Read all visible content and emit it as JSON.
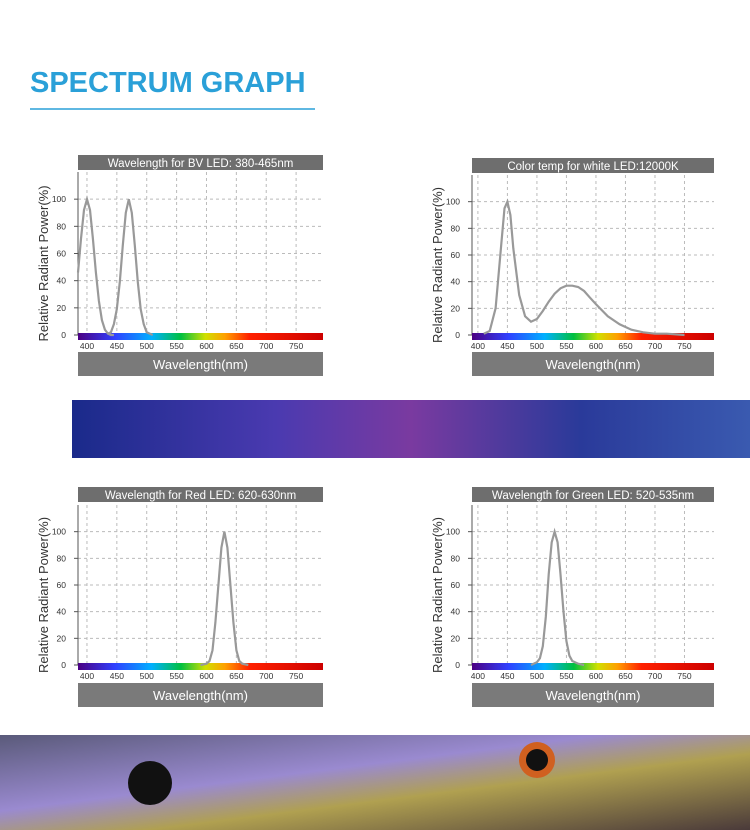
{
  "page_title": "SPECTRUM GRAPH",
  "chart_data": [
    {
      "type": "line",
      "title": "Wavelength for BV LED:  380-465nm",
      "xlabel": "Wavelength(nm)",
      "ylabel": "Relative Radiant Power(%)",
      "xlim": [
        385,
        795
      ],
      "ylim": [
        0,
        120
      ],
      "xticks": [
        400,
        450,
        500,
        550,
        600,
        650,
        700,
        750
      ],
      "yticks": [
        0,
        20,
        40,
        60,
        80,
        100
      ],
      "grid": true,
      "series": [
        {
          "color": "#999999",
          "x": [
            385,
            390,
            395,
            400,
            405,
            410,
            415,
            420,
            425,
            430,
            435,
            440,
            445
          ],
          "values": [
            46,
            71,
            92,
            100,
            92,
            71,
            46,
            25,
            11,
            4,
            1,
            0,
            0
          ]
        },
        {
          "color": "#999999",
          "x": [
            435,
            440,
            445,
            450,
            455,
            460,
            465,
            470,
            475,
            480,
            485,
            490,
            495,
            500,
            505,
            510
          ],
          "values": [
            1,
            2,
            8,
            19,
            39,
            66,
            90,
            100,
            90,
            66,
            39,
            19,
            8,
            2,
            1,
            0
          ]
        }
      ]
    },
    {
      "type": "line",
      "title": "Color temp for white LED:12000K",
      "xlabel": "Wavelength(nm)",
      "ylabel": "Relative Radiant Power(%)",
      "xlim": [
        390,
        800
      ],
      "ylim": [
        0,
        120
      ],
      "xticks": [
        400,
        450,
        500,
        550,
        600,
        650,
        700,
        750
      ],
      "yticks": [
        0,
        20,
        40,
        60,
        80,
        100
      ],
      "grid": true,
      "series": [
        {
          "color": "#999999",
          "x": [
            410,
            420,
            430,
            440,
            445,
            450,
            455,
            460,
            470,
            480,
            490,
            500,
            510,
            520,
            530,
            540,
            550,
            560,
            570,
            580,
            590,
            600,
            620,
            640,
            660,
            680,
            700,
            720,
            750
          ],
          "values": [
            1,
            3,
            20,
            70,
            95,
            100,
            90,
            65,
            30,
            14,
            10,
            12,
            18,
            25,
            31,
            35,
            37,
            37,
            36,
            33,
            28,
            23,
            14,
            8,
            4,
            2,
            1,
            1,
            0
          ]
        }
      ]
    },
    {
      "type": "line",
      "title": "Wavelength for Red LED:  620-630nm",
      "xlabel": "Wavelength(nm)",
      "ylabel": "Relative Radiant Power(%)",
      "xlim": [
        385,
        795
      ],
      "ylim": [
        0,
        120
      ],
      "xticks": [
        400,
        450,
        500,
        550,
        600,
        650,
        700,
        750
      ],
      "yticks": [
        0,
        20,
        40,
        60,
        80,
        100
      ],
      "grid": true,
      "series": [
        {
          "color": "#999999",
          "x": [
            590,
            600,
            605,
            610,
            615,
            620,
            625,
            630,
            635,
            640,
            645,
            650,
            655,
            660,
            670
          ],
          "values": [
            0,
            1,
            3,
            11,
            32,
            60,
            88,
            100,
            88,
            60,
            32,
            11,
            3,
            1,
            0
          ]
        }
      ]
    },
    {
      "type": "line",
      "title": "Wavelength for Green LED:  520-535nm",
      "xlabel": "Wavelength(nm)",
      "ylabel": "Relative Radiant Power(%)",
      "xlim": [
        390,
        800
      ],
      "ylim": [
        0,
        120
      ],
      "xticks": [
        400,
        450,
        500,
        550,
        600,
        650,
        700,
        750
      ],
      "yticks": [
        0,
        20,
        40,
        60,
        80,
        100
      ],
      "grid": true,
      "series": [
        {
          "color": "#999999",
          "x": [
            490,
            500,
            505,
            510,
            515,
            520,
            525,
            530,
            535,
            540,
            545,
            550,
            555,
            560,
            570,
            580
          ],
          "values": [
            0,
            2,
            5,
            14,
            36,
            68,
            92,
            100,
            92,
            68,
            40,
            18,
            7,
            3,
            1,
            0
          ]
        }
      ]
    }
  ]
}
